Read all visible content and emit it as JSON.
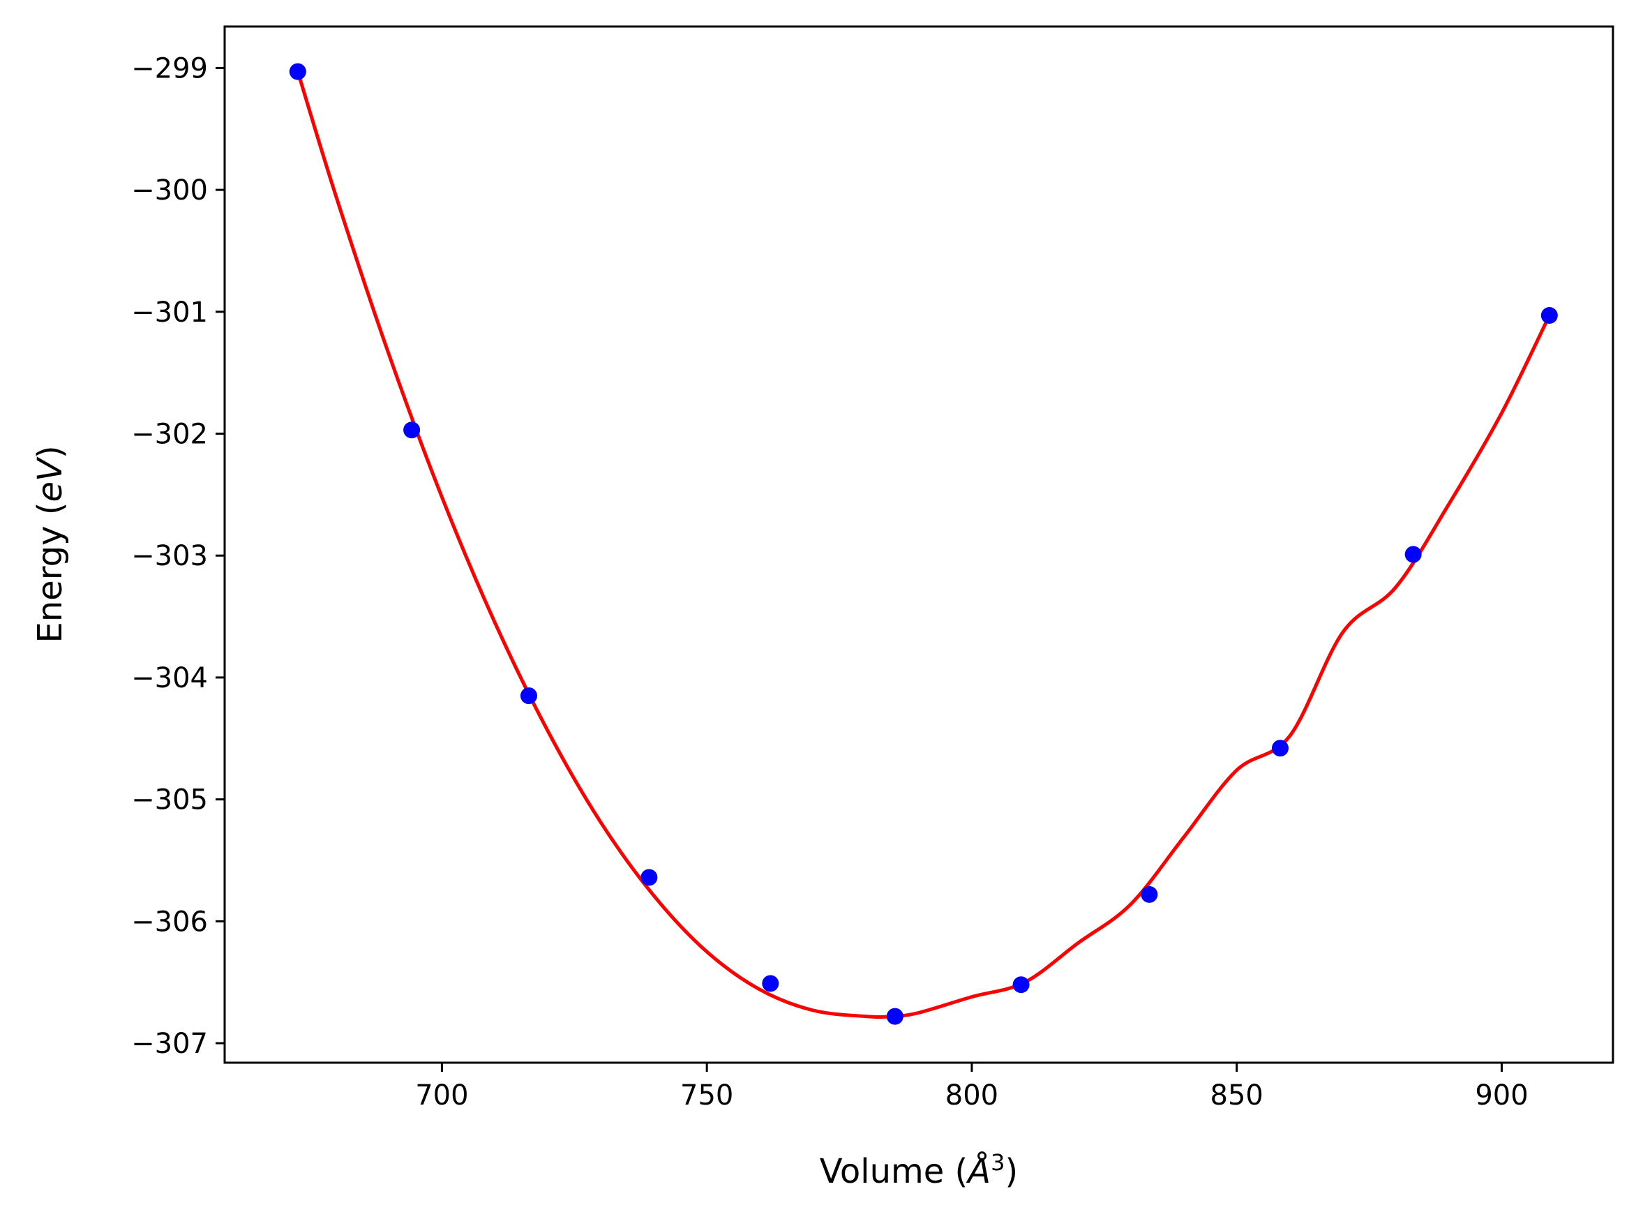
{
  "chart_data": {
    "type": "scatter",
    "xlabel_main": "Volume (",
    "xlabel_unit": "Å",
    "xlabel_sup": "3",
    "xlabel_close": ")",
    "ylabel_main": "Energy (",
    "ylabel_unit": "eV",
    "ylabel_close": ")",
    "xlim": [
      659.0,
      921.0
    ],
    "ylim": [
      -307.16,
      -298.66
    ],
    "x_ticks": [
      700,
      750,
      800,
      850,
      900
    ],
    "y_ticks": [
      -299,
      -300,
      -301,
      -302,
      -303,
      -304,
      -305,
      -306,
      -307
    ],
    "x_tick_labels": [
      "700",
      "750",
      "800",
      "850",
      "900"
    ],
    "y_tick_labels": [
      "−299",
      "−300",
      "−301",
      "−302",
      "−303",
      "−304",
      "−305",
      "−306",
      "−307"
    ],
    "grid": false,
    "series": [
      {
        "kind": "points",
        "color": "#0000ff",
        "x": [
          672.8,
          694.3,
          716.4,
          739.1,
          762.0,
          785.5,
          809.3,
          833.5,
          858.2,
          883.3,
          909.0
        ],
        "y": [
          -299.03,
          -301.97,
          -304.15,
          -305.64,
          -306.51,
          -306.78,
          -306.52,
          -305.78,
          -304.58,
          -302.99,
          -301.03
        ]
      },
      {
        "kind": "fit-line",
        "color": "#ff0000",
        "x": [
          672.8,
          680,
          690,
          700,
          710,
          720,
          730,
          740,
          750,
          760,
          770,
          780,
          785,
          790,
          800,
          810,
          820,
          830,
          840,
          850,
          860,
          870,
          880,
          890,
          900,
          909.0
        ],
        "y": [
          -299.03,
          -300.05,
          -301.35,
          -302.52,
          -303.55,
          -304.44,
          -305.19,
          -305.79,
          -306.25,
          -306.56,
          -306.73,
          -306.78,
          -306.78,
          -306.75,
          -306.62,
          -306.5,
          -306.18,
          -305.86,
          -305.31,
          -304.76,
          -304.48,
          -303.63,
          -303.26,
          -302.58,
          -301.83,
          -301.03
        ]
      }
    ]
  }
}
